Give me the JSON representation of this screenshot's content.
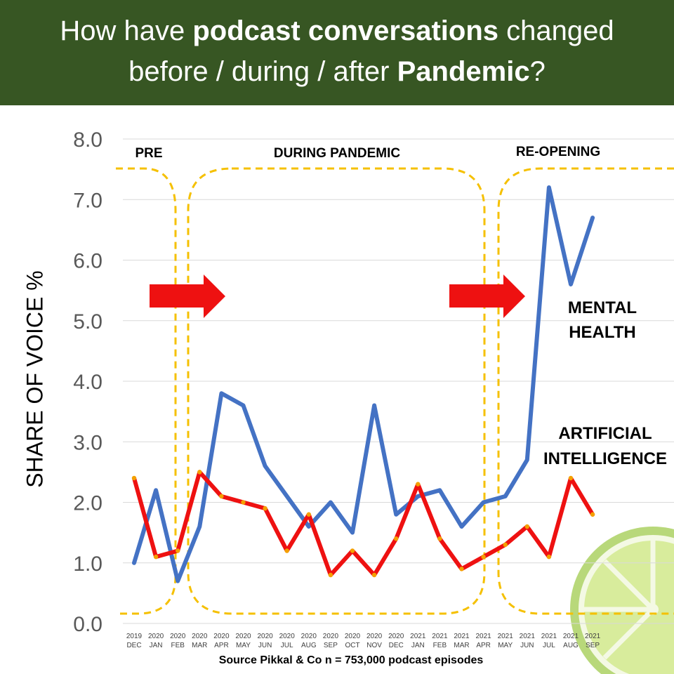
{
  "header": {
    "line1_a": "How have ",
    "line1_b": "podcast conversations",
    "line1_c": " changed",
    "line2_a": "before / during / after ",
    "line2_b": "Pandemic",
    "line2_c": "?"
  },
  "source": "Source Pikkal & Co n = 753,000 podcast episodes",
  "phases": {
    "pre": "PRE",
    "during": "DURING PANDEMIC",
    "reopening": "RE-OPENING"
  },
  "series_labels": {
    "mental_line1": "MENTAL",
    "mental_line2": "HEALTH",
    "ai_line1": "ARTIFICIAL",
    "ai_line2": "INTELLIGENCE"
  },
  "colors": {
    "header_bg": "#375623",
    "mental_health": "#4472C4",
    "ai": "#EE1111",
    "marker": "#F4A000",
    "phase_border": "#F5C000",
    "arrow": "#EE1111",
    "lime_rim": "#B8D87A",
    "lime_flesh": "#D8EC9C"
  },
  "icons": [
    "right-arrow-icon",
    "lime-slice-icon"
  ],
  "chart_data": {
    "type": "line",
    "ylabel": "SHARE OF VOICE %",
    "xlabel": "",
    "ylim": [
      0,
      8
    ],
    "yticks": [
      "0.0",
      "1.0",
      "2.0",
      "3.0",
      "4.0",
      "5.0",
      "6.0",
      "7.0",
      "8.0"
    ],
    "grid": true,
    "categories": [
      [
        "2019",
        "DEC"
      ],
      [
        "2020",
        "JAN"
      ],
      [
        "2020",
        "FEB"
      ],
      [
        "2020",
        "MAR"
      ],
      [
        "2020",
        "APR"
      ],
      [
        "2020",
        "MAY"
      ],
      [
        "2020",
        "JUN"
      ],
      [
        "2020",
        "JUL"
      ],
      [
        "2020",
        "AUG"
      ],
      [
        "2020",
        "SEP"
      ],
      [
        "2020",
        "OCT"
      ],
      [
        "2020",
        "NOV"
      ],
      [
        "2020",
        "DEC"
      ],
      [
        "2021",
        "JAN"
      ],
      [
        "2021",
        "FEB"
      ],
      [
        "2021",
        "MAR"
      ],
      [
        "2021",
        "APR"
      ],
      [
        "2021",
        "MAY"
      ],
      [
        "2021",
        "JUN"
      ],
      [
        "2021",
        "JUL"
      ],
      [
        "2021",
        "AUG"
      ],
      [
        "2021",
        "SEP"
      ]
    ],
    "series": [
      {
        "name": "MENTAL HEALTH",
        "values": [
          1.0,
          2.2,
          0.7,
          1.6,
          3.8,
          3.6,
          2.6,
          2.1,
          1.6,
          2.0,
          1.5,
          3.6,
          1.8,
          2.1,
          2.2,
          1.6,
          2.0,
          2.1,
          2.7,
          7.2,
          5.6,
          6.7
        ]
      },
      {
        "name": "ARTIFICIAL INTELLIGENCE",
        "values": [
          2.4,
          1.1,
          1.2,
          2.5,
          2.1,
          2.0,
          1.9,
          1.2,
          1.8,
          0.8,
          1.2,
          0.8,
          1.4,
          2.3,
          1.4,
          0.9,
          1.1,
          1.3,
          1.6,
          1.1,
          2.4,
          1.8
        ]
      }
    ]
  }
}
